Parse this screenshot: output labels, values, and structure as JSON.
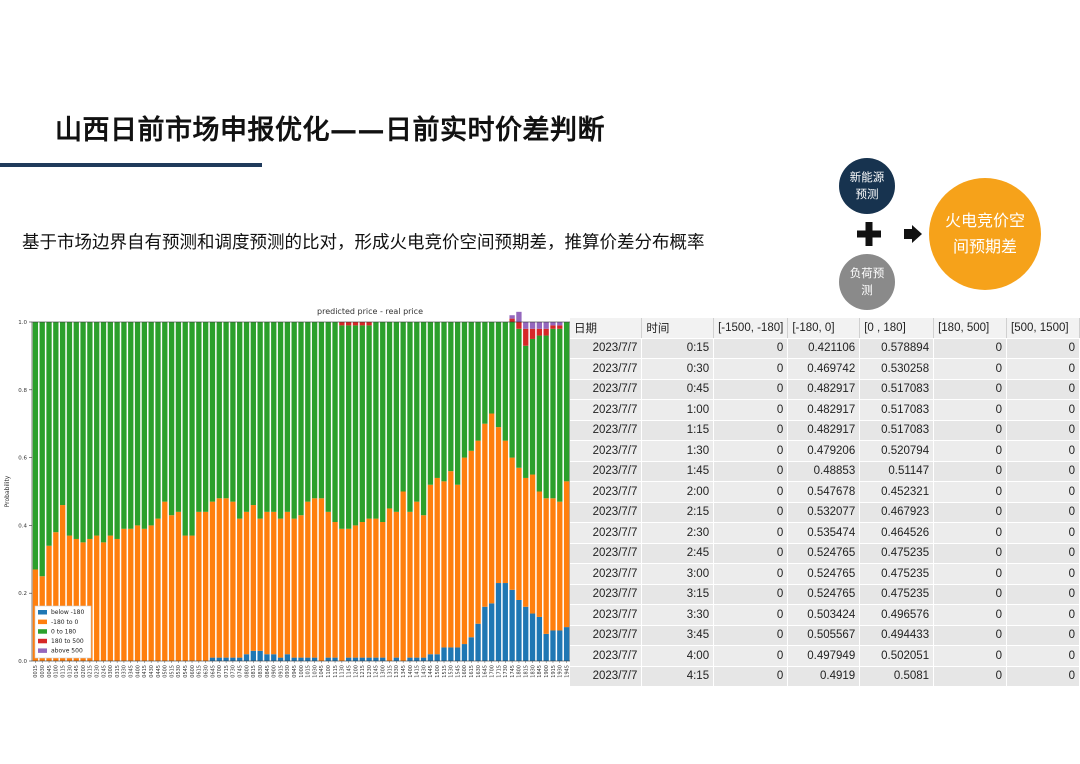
{
  "title": "山西日前市场申报优化——日前实时价差判断",
  "subtitle": "基于市场边界自有预测和调度预测的比对，形成火电竞价空间预期差，推算价差分布概率",
  "diagram": {
    "renewable": "新能源预测",
    "load": "负荷预测",
    "result": "火电竞价空间预期差",
    "plus_icon": "plus-icon",
    "arrow_icon": "arrow-right-icon"
  },
  "colors": {
    "below_-180": "#1f77b4",
    "-180_to_0": "#ff7f0e",
    "0_to_180": "#2ca02c",
    "180_to_500": "#d62728",
    "above_500": "#9467bd",
    "title_rule": "#1f3a5b",
    "result_circle": "#f6a21a"
  },
  "chart_data": {
    "type": "bar",
    "stacked": true,
    "title": "predicted price - real price",
    "xlabel": "",
    "ylabel": "Probability",
    "ylim": [
      0,
      1.0
    ],
    "yticks": [
      "0.0",
      "0.2",
      "0.4",
      "0.6",
      "0.8",
      "1.0"
    ],
    "legend_position": "lower-left",
    "categories": [
      "0015",
      "0030",
      "0045",
      "0100",
      "0115",
      "0130",
      "0145",
      "0200",
      "0215",
      "0230",
      "0245",
      "0300",
      "0315",
      "0330",
      "0345",
      "0400",
      "0415",
      "0430",
      "0445",
      "0500",
      "0515",
      "0530",
      "0545",
      "0600",
      "0615",
      "0630",
      "0645",
      "0700",
      "0715",
      "0730",
      "0745",
      "0800",
      "0815",
      "0830",
      "0845",
      "0900",
      "0915",
      "0930",
      "0945",
      "1000",
      "1015",
      "1030",
      "1045",
      "1100",
      "1115",
      "1130",
      "1145",
      "1200",
      "1215",
      "1230",
      "1245",
      "1300",
      "1315",
      "1330",
      "1345",
      "1400",
      "1415",
      "1430",
      "1445",
      "1500",
      "1515",
      "1530",
      "1545",
      "1600",
      "1615",
      "1630",
      "1645",
      "1700",
      "1715",
      "1730",
      "1745",
      "1800",
      "1815",
      "1830",
      "1845",
      "1900",
      "1915",
      "1930",
      "1945"
    ],
    "series": [
      {
        "name": "below -180",
        "values": [
          0,
          0,
          0,
          0,
          0,
          0,
          0,
          0,
          0,
          0,
          0,
          0,
          0,
          0,
          0,
          0,
          0,
          0,
          0,
          0,
          0,
          0,
          0,
          0,
          0,
          0,
          0.01,
          0.01,
          0.01,
          0.01,
          0.01,
          0.02,
          0.03,
          0.03,
          0.02,
          0.02,
          0.01,
          0.02,
          0.01,
          0.01,
          0.01,
          0.01,
          0,
          0.01,
          0.01,
          0,
          0.01,
          0.01,
          0.01,
          0.01,
          0.01,
          0.01,
          0,
          0.01,
          0,
          0.01,
          0.01,
          0.01,
          0.02,
          0.02,
          0.04,
          0.04,
          0.04,
          0.05,
          0.07,
          0.11,
          0.16,
          0.17,
          0.23,
          0.23,
          0.21,
          0.18,
          0.16,
          0.14,
          0.13,
          0.08,
          0.09,
          0.09,
          0.1
        ]
      },
      {
        "name": "-180 to 0",
        "values": [
          0.27,
          0.25,
          0.34,
          0.38,
          0.46,
          0.37,
          0.36,
          0.35,
          0.36,
          0.37,
          0.35,
          0.37,
          0.36,
          0.39,
          0.39,
          0.4,
          0.39,
          0.4,
          0.42,
          0.47,
          0.43,
          0.44,
          0.37,
          0.37,
          0.44,
          0.44,
          0.46,
          0.47,
          0.47,
          0.46,
          0.41,
          0.42,
          0.43,
          0.39,
          0.42,
          0.42,
          0.41,
          0.42,
          0.41,
          0.42,
          0.46,
          0.47,
          0.48,
          0.43,
          0.4,
          0.39,
          0.38,
          0.39,
          0.4,
          0.41,
          0.41,
          0.4,
          0.45,
          0.43,
          0.5,
          0.43,
          0.46,
          0.42,
          0.5,
          0.52,
          0.49,
          0.52,
          0.48,
          0.55,
          0.55,
          0.54,
          0.54,
          0.56,
          0.46,
          0.42,
          0.39,
          0.39,
          0.38,
          0.41,
          0.37,
          0.4,
          0.39,
          0.38,
          0.43
        ]
      },
      {
        "name": "0 to 180",
        "values": [
          0.73,
          0.75,
          0.66,
          0.62,
          0.54,
          0.63,
          0.64,
          0.65,
          0.64,
          0.63,
          0.65,
          0.63,
          0.64,
          0.61,
          0.61,
          0.6,
          0.61,
          0.6,
          0.58,
          0.53,
          0.57,
          0.56,
          0.63,
          0.63,
          0.56,
          0.56,
          0.53,
          0.52,
          0.52,
          0.53,
          0.58,
          0.56,
          0.54,
          0.58,
          0.56,
          0.56,
          0.58,
          0.56,
          0.58,
          0.57,
          0.53,
          0.52,
          0.52,
          0.56,
          0.59,
          0.6,
          0.6,
          0.59,
          0.58,
          0.57,
          0.58,
          0.59,
          0.55,
          0.56,
          0.5,
          0.56,
          0.53,
          0.57,
          0.48,
          0.46,
          0.47,
          0.44,
          0.48,
          0.4,
          0.38,
          0.35,
          0.3,
          0.27,
          0.31,
          0.35,
          0.4,
          0.41,
          0.39,
          0.4,
          0.46,
          0.48,
          0.5,
          0.51,
          0.47
        ]
      },
      {
        "name": "180 to 500",
        "values": [
          0,
          0,
          0,
          0,
          0,
          0,
          0,
          0,
          0,
          0,
          0,
          0,
          0,
          0,
          0,
          0,
          0,
          0,
          0,
          0,
          0,
          0,
          0,
          0,
          0,
          0,
          0,
          0,
          0,
          0,
          0,
          0,
          0,
          0,
          0,
          0,
          0,
          0,
          0,
          0,
          0,
          0,
          0,
          0,
          0,
          0.01,
          0.01,
          0.01,
          0.01,
          0.01,
          0,
          0,
          0,
          0,
          0,
          0,
          0,
          0,
          0,
          0,
          0,
          0,
          0,
          0,
          0,
          0,
          0,
          0,
          0,
          0,
          0.01,
          0.02,
          0.05,
          0.03,
          0.02,
          0.02,
          0.01,
          0.01,
          0
        ]
      },
      {
        "name": "above 500",
        "values": [
          0,
          0,
          0,
          0,
          0,
          0,
          0,
          0,
          0,
          0,
          0,
          0,
          0,
          0,
          0,
          0,
          0,
          0,
          0,
          0,
          0,
          0,
          0,
          0,
          0,
          0,
          0,
          0,
          0,
          0,
          0,
          0,
          0,
          0,
          0,
          0,
          0,
          0,
          0,
          0,
          0,
          0,
          0,
          0,
          0,
          0,
          0,
          0,
          0,
          0,
          0,
          0,
          0,
          0,
          0,
          0,
          0,
          0,
          0,
          0,
          0,
          0,
          0,
          0,
          0,
          0,
          0,
          0,
          0,
          0,
          0.01,
          0.03,
          0.02,
          0.02,
          0.02,
          0.02,
          0.01,
          0.01,
          0
        ]
      }
    ]
  },
  "table": {
    "headers": [
      "日期",
      "时间",
      "[-1500, -180]",
      "[-180, 0]",
      "[0 , 180]",
      "[180, 500]",
      "[500, 1500]"
    ],
    "rows": [
      [
        "2023/7/7",
        "0:15",
        "0",
        "0.421106",
        "0.578894",
        "0",
        "0"
      ],
      [
        "2023/7/7",
        "0:30",
        "0",
        "0.469742",
        "0.530258",
        "0",
        "0"
      ],
      [
        "2023/7/7",
        "0:45",
        "0",
        "0.482917",
        "0.517083",
        "0",
        "0"
      ],
      [
        "2023/7/7",
        "1:00",
        "0",
        "0.482917",
        "0.517083",
        "0",
        "0"
      ],
      [
        "2023/7/7",
        "1:15",
        "0",
        "0.482917",
        "0.517083",
        "0",
        "0"
      ],
      [
        "2023/7/7",
        "1:30",
        "0",
        "0.479206",
        "0.520794",
        "0",
        "0"
      ],
      [
        "2023/7/7",
        "1:45",
        "0",
        "0.48853",
        "0.51147",
        "0",
        "0"
      ],
      [
        "2023/7/7",
        "2:00",
        "0",
        "0.547678",
        "0.452321",
        "0",
        "0"
      ],
      [
        "2023/7/7",
        "2:15",
        "0",
        "0.532077",
        "0.467923",
        "0",
        "0"
      ],
      [
        "2023/7/7",
        "2:30",
        "0",
        "0.535474",
        "0.464526",
        "0",
        "0"
      ],
      [
        "2023/7/7",
        "2:45",
        "0",
        "0.524765",
        "0.475235",
        "0",
        "0"
      ],
      [
        "2023/7/7",
        "3:00",
        "0",
        "0.524765",
        "0.475235",
        "0",
        "0"
      ],
      [
        "2023/7/7",
        "3:15",
        "0",
        "0.524765",
        "0.475235",
        "0",
        "0"
      ],
      [
        "2023/7/7",
        "3:30",
        "0",
        "0.503424",
        "0.496576",
        "0",
        "0"
      ],
      [
        "2023/7/7",
        "3:45",
        "0",
        "0.505567",
        "0.494433",
        "0",
        "0"
      ],
      [
        "2023/7/7",
        "4:00",
        "0",
        "0.497949",
        "0.502051",
        "0",
        "0"
      ],
      [
        "2023/7/7",
        "4:15",
        "0",
        "0.4919",
        "0.5081",
        "0",
        "0"
      ]
    ]
  }
}
